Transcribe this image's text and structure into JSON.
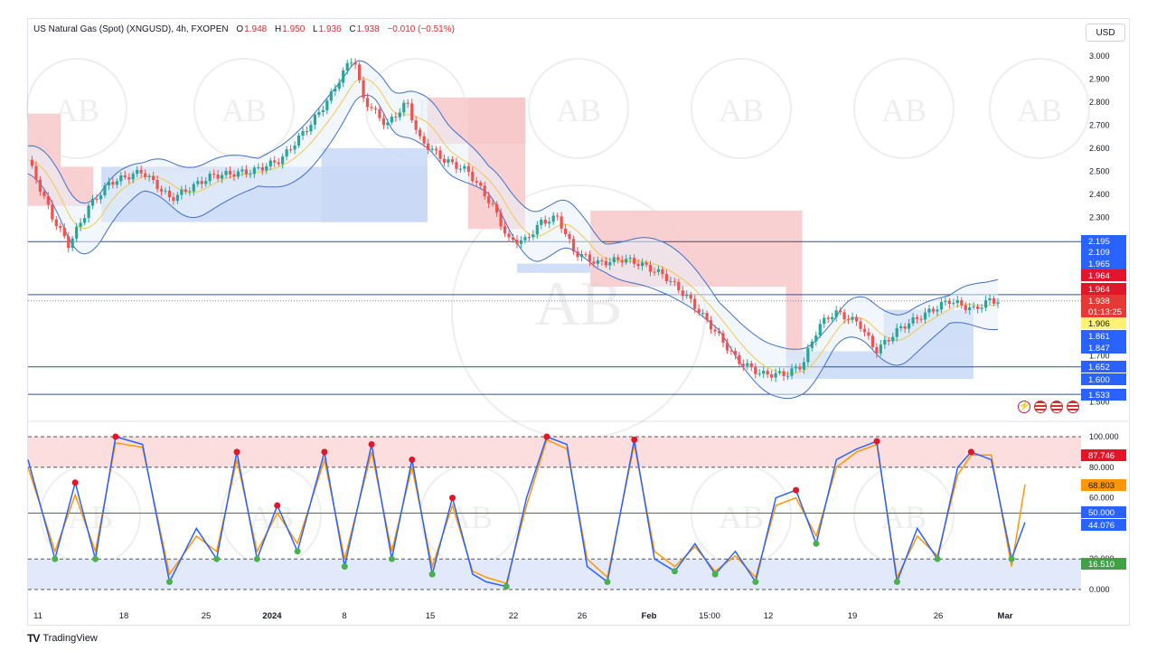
{
  "header": {
    "title": "US Natural Gas (Spot) (XNGUSD), 4h, FXOPEN",
    "open_label": "O",
    "open": "1.948",
    "high_label": "H",
    "high": "1.950",
    "low_label": "L",
    "low": "1.936",
    "close_label": "C",
    "close": "1.938",
    "change": "−0.010 (−0.51%)"
  },
  "currency": "USD",
  "brand": {
    "logo": "tradingview-logo",
    "name": "TradingView"
  },
  "colors": {
    "up": "#26a69a",
    "down": "#ef5350",
    "bb": "#3f6fc9",
    "basis": "#f2c94c",
    "supply_zone": "#f8c8c9",
    "demand_zone": "#c8d8f6",
    "level_line": "#2e5090",
    "stoch_k": "#2962ff",
    "stoch_d": "#ff9800",
    "dot_red": "#e0162b",
    "dot_green": "#4caf50"
  },
  "chart_data": [
    {
      "type": "candlestick",
      "symbol": "XNGUSD",
      "interval": "4h",
      "x_ticks": [
        "11",
        "18",
        "25",
        "2024",
        "8",
        "15",
        "22",
        "26",
        "Feb",
        "15:00",
        "12",
        "19",
        "26",
        "Mar"
      ],
      "y_ticks": [
        "3.000",
        "2.900",
        "2.800",
        "2.700",
        "2.600",
        "2.500",
        "2.400",
        "2.300",
        "1.700",
        "1.500"
      ],
      "ylim": [
        1.5,
        3.0
      ],
      "price_path": [
        [
          0,
          2.55
        ],
        [
          6,
          2.3
        ],
        [
          10,
          2.18
        ],
        [
          15,
          2.35
        ],
        [
          20,
          2.45
        ],
        [
          28,
          2.5
        ],
        [
          35,
          2.38
        ],
        [
          45,
          2.48
        ],
        [
          55,
          2.5
        ],
        [
          62,
          2.55
        ],
        [
          70,
          2.72
        ],
        [
          74,
          2.82
        ],
        [
          78,
          2.95
        ],
        [
          80,
          3.0
        ],
        [
          82,
          2.82
        ],
        [
          88,
          2.7
        ],
        [
          93,
          2.8
        ],
        [
          96,
          2.64
        ],
        [
          102,
          2.55
        ],
        [
          108,
          2.5
        ],
        [
          114,
          2.35
        ],
        [
          118,
          2.2
        ],
        [
          122,
          2.2
        ],
        [
          126,
          2.28
        ],
        [
          130,
          2.3
        ],
        [
          134,
          2.15
        ],
        [
          140,
          2.1
        ],
        [
          146,
          2.12
        ],
        [
          150,
          2.1
        ],
        [
          156,
          2.05
        ],
        [
          162,
          1.95
        ],
        [
          168,
          1.82
        ],
        [
          174,
          1.68
        ],
        [
          180,
          1.62
        ],
        [
          186,
          1.62
        ],
        [
          190,
          1.66
        ],
        [
          194,
          1.83
        ],
        [
          198,
          1.89
        ],
        [
          204,
          1.84
        ],
        [
          208,
          1.72
        ],
        [
          214,
          1.82
        ],
        [
          220,
          1.88
        ],
        [
          226,
          1.94
        ],
        [
          232,
          1.9
        ],
        [
          236,
          1.94
        ],
        [
          238,
          1.938
        ]
      ],
      "horizontal_levels": [
        2.195,
        1.965,
        1.652,
        1.533
      ],
      "price_scale_labels": [
        {
          "text": "2.195",
          "kind": "level"
        },
        {
          "text": "2.109",
          "kind": "level"
        },
        {
          "text": "1.965",
          "kind": "level"
        },
        {
          "text": "1.964",
          "kind": "high"
        },
        {
          "text": "1.964",
          "kind": "high"
        },
        {
          "text": "1.938",
          "kind": "last"
        },
        {
          "text": "01:13:25",
          "kind": "countdown"
        },
        {
          "text": "1.906",
          "kind": "basis"
        },
        {
          "text": "1.861",
          "kind": "level"
        },
        {
          "text": "1.847",
          "kind": "level"
        },
        {
          "text": "1.652",
          "kind": "level"
        },
        {
          "text": "1.600",
          "kind": "level"
        },
        {
          "text": "1.533",
          "kind": "level"
        }
      ],
      "last_price": 1.938,
      "countdown": "01:13:25",
      "indicators": [
        "Bollinger Bands",
        "Supply/Demand zones"
      ]
    },
    {
      "type": "line",
      "name": "Stochastic",
      "y_ticks": [
        "100.000",
        "80.000",
        "60.000",
        "20.000",
        "0.000"
      ],
      "ylim": [
        0,
        100
      ],
      "bands": [
        20,
        50,
        80
      ],
      "k_path": [
        [
          0,
          85
        ],
        [
          4,
          20
        ],
        [
          7,
          70
        ],
        [
          10,
          20
        ],
        [
          13,
          100
        ],
        [
          17,
          95
        ],
        [
          21,
          5
        ],
        [
          25,
          40
        ],
        [
          28,
          20
        ],
        [
          31,
          90
        ],
        [
          34,
          20
        ],
        [
          37,
          55
        ],
        [
          40,
          25
        ],
        [
          44,
          90
        ],
        [
          47,
          15
        ],
        [
          51,
          95
        ],
        [
          54,
          20
        ],
        [
          57,
          85
        ],
        [
          60,
          10
        ],
        [
          63,
          60
        ],
        [
          66,
          10
        ],
        [
          68,
          5
        ],
        [
          71,
          2
        ],
        [
          74,
          60
        ],
        [
          77,
          100
        ],
        [
          80,
          95
        ],
        [
          83,
          15
        ],
        [
          86,
          5
        ],
        [
          90,
          98
        ],
        [
          93,
          20
        ],
        [
          96,
          12
        ],
        [
          99,
          30
        ],
        [
          102,
          10
        ],
        [
          105,
          25
        ],
        [
          108,
          5
        ],
        [
          111,
          60
        ],
        [
          114,
          65
        ],
        [
          117,
          30
        ],
        [
          120,
          85
        ],
        [
          123,
          92
        ],
        [
          126,
          97
        ],
        [
          129,
          5
        ],
        [
          132,
          40
        ],
        [
          135,
          20
        ],
        [
          138,
          80
        ],
        [
          140,
          90
        ],
        [
          143,
          85
        ],
        [
          146,
          20
        ],
        [
          148,
          44
        ]
      ],
      "d_path": [
        [
          0,
          80
        ],
        [
          4,
          25
        ],
        [
          7,
          62
        ],
        [
          10,
          25
        ],
        [
          13,
          96
        ],
        [
          17,
          93
        ],
        [
          21,
          10
        ],
        [
          25,
          35
        ],
        [
          28,
          25
        ],
        [
          31,
          85
        ],
        [
          34,
          25
        ],
        [
          37,
          50
        ],
        [
          40,
          30
        ],
        [
          44,
          85
        ],
        [
          47,
          20
        ],
        [
          51,
          90
        ],
        [
          54,
          25
        ],
        [
          57,
          80
        ],
        [
          60,
          15
        ],
        [
          63,
          55
        ],
        [
          66,
          12
        ],
        [
          68,
          8
        ],
        [
          71,
          4
        ],
        [
          74,
          55
        ],
        [
          77,
          98
        ],
        [
          80,
          92
        ],
        [
          83,
          20
        ],
        [
          86,
          8
        ],
        [
          90,
          95
        ],
        [
          93,
          25
        ],
        [
          96,
          15
        ],
        [
          99,
          28
        ],
        [
          102,
          12
        ],
        [
          105,
          22
        ],
        [
          108,
          8
        ],
        [
          111,
          55
        ],
        [
          114,
          60
        ],
        [
          117,
          35
        ],
        [
          120,
          80
        ],
        [
          123,
          90
        ],
        [
          126,
          95
        ],
        [
          129,
          8
        ],
        [
          132,
          35
        ],
        [
          135,
          22
        ],
        [
          138,
          75
        ],
        [
          140,
          88
        ],
        [
          143,
          88
        ],
        [
          146,
          15
        ],
        [
          148,
          68.8
        ]
      ],
      "values": [
        {
          "text": "87.746",
          "kind": "band-high"
        },
        {
          "text": "68.803",
          "kind": "d"
        },
        {
          "text": "50.000",
          "kind": "mid"
        },
        {
          "text": "44.076",
          "kind": "k"
        },
        {
          "text": "16.510",
          "kind": "band-low"
        }
      ]
    }
  ]
}
